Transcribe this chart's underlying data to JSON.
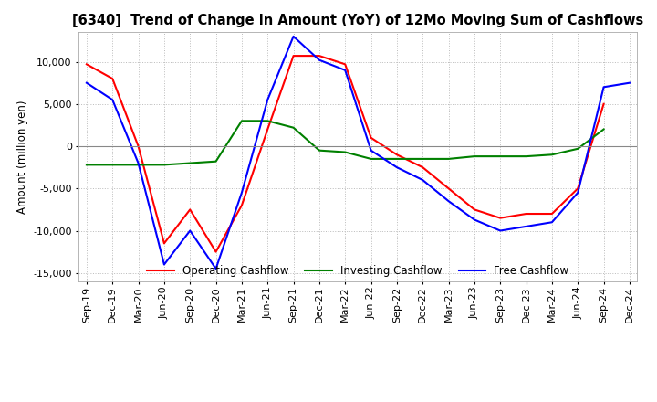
{
  "title": "[6340]  Trend of Change in Amount (YoY) of 12Mo Moving Sum of Cashflows",
  "ylabel": "Amount (million yen)",
  "ylim": [
    -16000,
    13500
  ],
  "yticks": [
    -15000,
    -10000,
    -5000,
    0,
    5000,
    10000
  ],
  "x_labels": [
    "Sep-19",
    "Dec-19",
    "Mar-20",
    "Jun-20",
    "Sep-20",
    "Dec-20",
    "Mar-21",
    "Jun-21",
    "Sep-21",
    "Dec-21",
    "Mar-22",
    "Jun-22",
    "Sep-22",
    "Dec-22",
    "Mar-23",
    "Jun-23",
    "Sep-23",
    "Dec-23",
    "Mar-24",
    "Jun-24",
    "Sep-24",
    "Dec-24"
  ],
  "operating": [
    9700,
    8000,
    0,
    -11500,
    -7500,
    -12500,
    -7000,
    2000,
    10700,
    10700,
    9700,
    1000,
    -1000,
    -2500,
    -5000,
    -7500,
    -8500,
    -8000,
    -8000,
    -5000,
    5000,
    null
  ],
  "investing": [
    -2200,
    -2200,
    -2200,
    -2200,
    -2000,
    -1800,
    3000,
    3000,
    2200,
    -500,
    -700,
    -1500,
    -1500,
    -1500,
    -1500,
    -1200,
    -1200,
    -1200,
    -1000,
    -300,
    2000,
    null
  ],
  "free": [
    7500,
    5500,
    -2000,
    -14000,
    -10000,
    -14500,
    -5500,
    5500,
    13000,
    10200,
    9000,
    -500,
    -2500,
    -4000,
    -6500,
    -8700,
    -10000,
    -9500,
    -9000,
    -5500,
    7000,
    7500
  ],
  "line_colors": {
    "operating": "#FF0000",
    "investing": "#008000",
    "free": "#0000FF"
  },
  "legend_labels": [
    "Operating Cashflow",
    "Investing Cashflow",
    "Free Cashflow"
  ],
  "background_color": "#FFFFFF",
  "grid_color": "#BBBBBB"
}
